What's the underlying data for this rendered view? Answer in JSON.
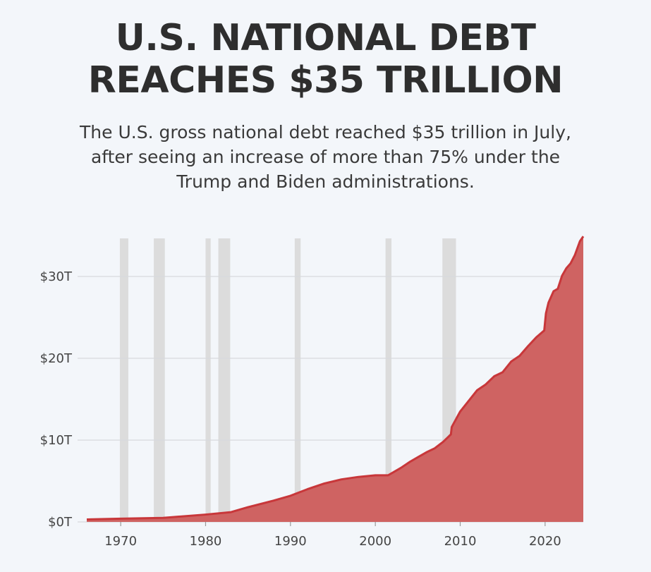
{
  "header": {
    "title_lines": [
      "U.S. NATIONAL DEBT",
      "REACHES $35 TRILLION"
    ],
    "subtitle_lines": [
      "The U.S. gross national debt reached $35 trillion in July,",
      "after seeing an increase of more than 75% under the",
      "Trump and Biden administrations."
    ]
  },
  "chart_data": {
    "type": "area",
    "title": "U.S. NATIONAL DEBT REACHES $35 TRILLION",
    "xlabel": "",
    "ylabel": "",
    "xlim": [
      1966,
      2024.5
    ],
    "ylim": [
      0,
      35
    ],
    "x_ticks": [
      1970,
      1980,
      1990,
      2000,
      2010,
      2020
    ],
    "x_tick_labels": [
      "1970",
      "1980",
      "1990",
      "2000",
      "2010",
      "2020"
    ],
    "y_ticks": [
      0,
      10,
      20,
      30
    ],
    "y_tick_labels": [
      "$0T",
      "$10T",
      "$20T",
      "$30T"
    ],
    "grid": "horizontal",
    "legend": "none",
    "color_fill": "#cf6362",
    "color_line": "#c8373a",
    "shaded_bands_color": "#dcdcdc",
    "shaded_bands": [
      [
        1969.9,
        1970.9
      ],
      [
        1973.9,
        1975.2
      ],
      [
        1980.0,
        1980.6
      ],
      [
        1981.5,
        1982.9
      ],
      [
        1990.5,
        1991.2
      ],
      [
        2001.2,
        2001.9
      ],
      [
        2007.9,
        2009.5
      ]
    ],
    "series": [
      {
        "values_unit": "trillions USD",
        "x": [
          1966,
          1970,
          1975,
          1980,
          1983,
          1985,
          1988,
          1990,
          1992,
          1994,
          1996,
          1998,
          2000,
          2001.5,
          2002,
          2003,
          2004,
          2005,
          2006,
          2007,
          2008,
          2008.9,
          2009,
          2010,
          2011,
          2012,
          2013,
          2014,
          2015,
          2016,
          2017,
          2018,
          2019,
          2019.9,
          2020.1,
          2020.4,
          2021,
          2021.5,
          2022,
          2022.5,
          2023,
          2023.5,
          2024.1,
          2024.5
        ],
        "y": [
          0.3,
          0.4,
          0.5,
          0.9,
          1.2,
          1.8,
          2.6,
          3.2,
          4.0,
          4.7,
          5.2,
          5.5,
          5.7,
          5.7,
          6.0,
          6.6,
          7.3,
          7.9,
          8.5,
          9.0,
          9.8,
          10.7,
          11.6,
          13.5,
          14.8,
          16.1,
          16.8,
          17.8,
          18.3,
          19.6,
          20.3,
          21.5,
          22.6,
          23.4,
          25.5,
          26.8,
          28.2,
          28.5,
          30.1,
          31.0,
          31.6,
          32.6,
          34.3,
          34.9
        ]
      }
    ]
  }
}
